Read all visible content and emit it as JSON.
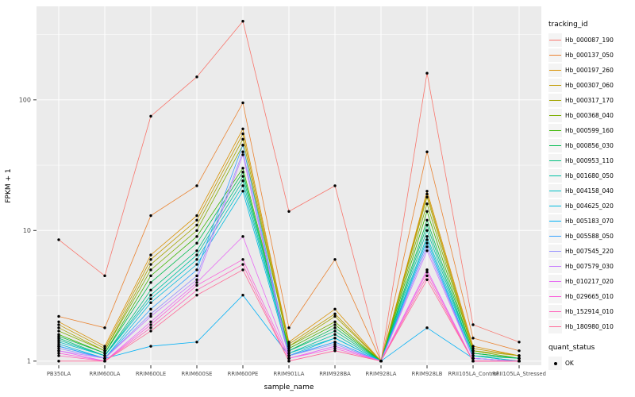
{
  "chart_data": {
    "type": "line",
    "title": "",
    "xlabel": "sample_name",
    "ylabel": "FPKM + 1",
    "y_scale": "log10",
    "y_ticks": [
      1,
      10,
      100
    ],
    "y_minor_ticks": [
      3.1623,
      31.623,
      316.23
    ],
    "ylim": [
      0.93,
      520
    ],
    "grid": true,
    "legend_position": "right",
    "panel_bg": "#EBEBEB",
    "grid_color": "#FFFFFF",
    "tick_label_color": "#4D4D4D",
    "point_color": "#000000",
    "legend_title": "tracking_id",
    "quant_legend_title": "quant_status",
    "quant_legend_items": [
      {
        "label": "OK"
      }
    ],
    "categories": [
      "PB350LA",
      "RRIM600LA",
      "RRIM600LE",
      "RRIM600SE",
      "RRIM600PE",
      "RRIM901LA",
      "RRIM928BA",
      "RRIM928LA",
      "RRIM928LB",
      "RRII105LA_Control",
      "RRII105LA_Stressed"
    ],
    "series": [
      {
        "name": "Hb_000087_190",
        "color": "#F8766D",
        "values": [
          8.5,
          4.5,
          75,
          150,
          400,
          14,
          22,
          1.0,
          160,
          1.9,
          1.4
        ]
      },
      {
        "name": "Hb_000137_050",
        "color": "#EA8331",
        "values": [
          2.2,
          1.8,
          13,
          22,
          95,
          1.8,
          6.0,
          1.0,
          40,
          1.5,
          1.2
        ]
      },
      {
        "name": "Hb_000197_260",
        "color": "#D89000",
        "values": [
          2.0,
          1.3,
          6.5,
          13,
          60,
          1.4,
          2.5,
          1.0,
          20,
          1.3,
          1.1
        ]
      },
      {
        "name": "Hb_000307_060",
        "color": "#C09B00",
        "values": [
          1.9,
          1.25,
          6.0,
          12,
          55,
          1.35,
          2.3,
          1.0,
          19,
          1.25,
          1.1
        ]
      },
      {
        "name": "Hb_000317_170",
        "color": "#A3A500",
        "values": [
          1.8,
          1.2,
          5.5,
          11,
          50,
          1.3,
          2.2,
          1.0,
          18,
          1.2,
          1.1
        ]
      },
      {
        "name": "Hb_000368_040",
        "color": "#7CAE00",
        "values": [
          1.7,
          1.2,
          5.0,
          10,
          45,
          1.3,
          2.0,
          1.0,
          16,
          1.2,
          1.05
        ]
      },
      {
        "name": "Hb_000599_160",
        "color": "#39B600",
        "values": [
          1.6,
          1.15,
          4.5,
          9.0,
          30,
          1.25,
          1.9,
          1.0,
          14,
          1.15,
          1.05
        ]
      },
      {
        "name": "Hb_000856_030",
        "color": "#00BB4E",
        "values": [
          1.55,
          1.15,
          4.0,
          8.0,
          28,
          1.2,
          1.8,
          1.0,
          12,
          1.15,
          1.05
        ]
      },
      {
        "name": "Hb_000953_110",
        "color": "#00BF7D",
        "values": [
          1.5,
          1.1,
          3.5,
          7.0,
          26,
          1.2,
          1.7,
          1.0,
          11,
          1.1,
          1.05
        ]
      },
      {
        "name": "Hb_001680_050",
        "color": "#00C1A3",
        "values": [
          1.45,
          1.1,
          3.2,
          6.5,
          24,
          1.15,
          1.6,
          1.0,
          10,
          1.1,
          1.0
        ]
      },
      {
        "name": "Hb_004158_040",
        "color": "#00BFC4",
        "values": [
          1.4,
          1.1,
          3.0,
          6.0,
          22,
          1.15,
          1.5,
          1.0,
          9.0,
          1.1,
          1.0
        ]
      },
      {
        "name": "Hb_004625_020",
        "color": "#00BADE",
        "values": [
          1.35,
          1.05,
          2.8,
          5.5,
          20,
          1.1,
          1.5,
          1.0,
          8.5,
          1.05,
          1.0
        ]
      },
      {
        "name": "Hb_005183_070",
        "color": "#00B0F6",
        "values": [
          1.3,
          1.05,
          1.3,
          1.4,
          3.2,
          1.1,
          1.4,
          1.0,
          1.8,
          1.05,
          1.0
        ]
      },
      {
        "name": "Hb_005588_050",
        "color": "#35A2FF",
        "values": [
          1.3,
          1.05,
          2.5,
          5.0,
          45,
          1.1,
          1.4,
          1.0,
          8.0,
          1.05,
          1.0
        ]
      },
      {
        "name": "Hb_007545_220",
        "color": "#9590FF",
        "values": [
          1.25,
          1.05,
          2.3,
          4.5,
          40,
          1.1,
          1.35,
          1.0,
          7.5,
          1.05,
          1.0
        ]
      },
      {
        "name": "Hb_007579_030",
        "color": "#C77CFF",
        "values": [
          1.2,
          1.05,
          2.2,
          4.2,
          38,
          1.05,
          1.3,
          1.0,
          7.0,
          1.05,
          1.0
        ]
      },
      {
        "name": "Hb_010217_020",
        "color": "#E76BF3",
        "values": [
          1.2,
          1.0,
          2.0,
          4.0,
          9.0,
          1.05,
          1.3,
          1.0,
          5.0,
          1.0,
          1.0
        ]
      },
      {
        "name": "Hb_029665_010",
        "color": "#FA62DB",
        "values": [
          1.15,
          1.0,
          1.9,
          3.8,
          6.0,
          1.05,
          1.25,
          1.0,
          4.8,
          1.0,
          1.0
        ]
      },
      {
        "name": "Hb_152914_010",
        "color": "#FF62BC",
        "values": [
          1.1,
          1.0,
          1.8,
          3.5,
          5.5,
          1.0,
          1.2,
          1.0,
          4.5,
          1.0,
          1.0
        ]
      },
      {
        "name": "Hb_180980_010",
        "color": "#FF6A98",
        "values": [
          1.0,
          1.0,
          1.7,
          3.2,
          5.0,
          1.0,
          1.2,
          1.0,
          4.2,
          1.0,
          1.0
        ]
      }
    ]
  }
}
